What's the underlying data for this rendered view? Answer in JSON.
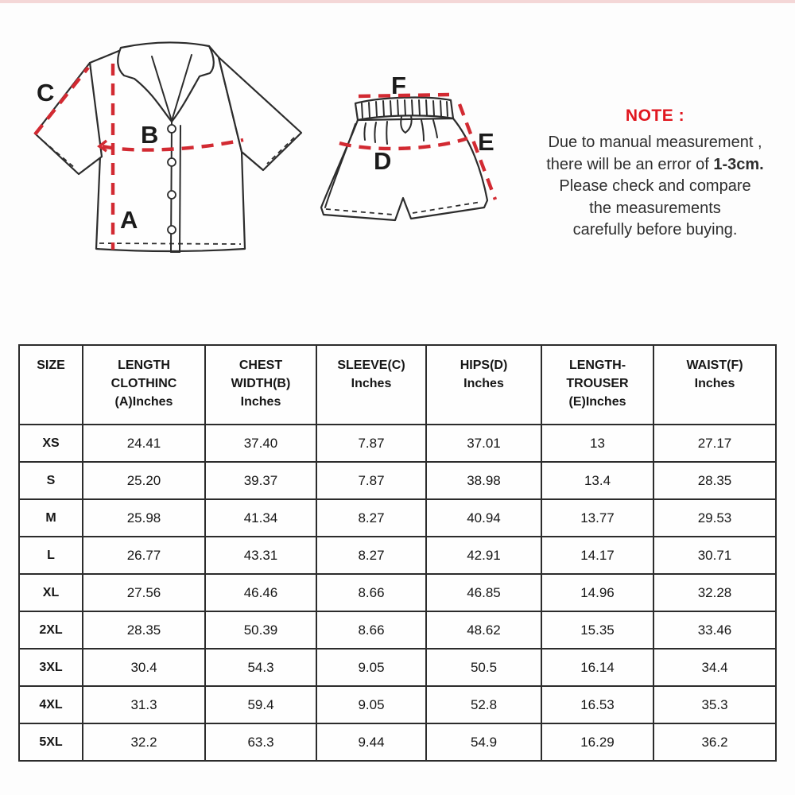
{
  "colors": {
    "accent_red": "#d22a32",
    "note_red": "#e0161e",
    "ink": "#2c2c2c"
  },
  "diagram": {
    "labels": {
      "a": "A",
      "b": "B",
      "c": "C",
      "d": "D",
      "e": "E",
      "f": "F"
    }
  },
  "note": {
    "title": "NOTE :",
    "line1": "Due to manual measurement ,",
    "line2_normal": "there will be an error of ",
    "line2_bold": "1-3cm.",
    "line3": "Please check and compare",
    "line4": "the measurements",
    "line5": "carefully before buying."
  },
  "table": {
    "headers": [
      "SIZE",
      "LENGTH\nCLOTHINC\n(A)Inches",
      "CHEST\nWIDTH(B)\nInches",
      "SLEEVE(C)\nInches",
      "HIPS(D)\nInches",
      "LENGTH-\nTROUSER\n(E)Inches",
      "WAIST(F)\nInches"
    ],
    "rows": [
      {
        "size": "XS",
        "values": [
          "24.41",
          "37.40",
          "7.87",
          "37.01",
          "13",
          "27.17"
        ]
      },
      {
        "size": "S",
        "values": [
          "25.20",
          "39.37",
          "7.87",
          "38.98",
          "13.4",
          "28.35"
        ]
      },
      {
        "size": "M",
        "values": [
          "25.98",
          "41.34",
          "8.27",
          "40.94",
          "13.77",
          "29.53"
        ]
      },
      {
        "size": "L",
        "values": [
          "26.77",
          "43.31",
          "8.27",
          "42.91",
          "14.17",
          "30.71"
        ]
      },
      {
        "size": "XL",
        "values": [
          "27.56",
          "46.46",
          "8.66",
          "46.85",
          "14.96",
          "32.28"
        ]
      },
      {
        "size": "2XL",
        "values": [
          "28.35",
          "50.39",
          "8.66",
          "48.62",
          "15.35",
          "33.46"
        ]
      },
      {
        "size": "3XL",
        "values": [
          "30.4",
          "54.3",
          "9.05",
          "50.5",
          "16.14",
          "34.4"
        ]
      },
      {
        "size": "4XL",
        "values": [
          "31.3",
          "59.4",
          "9.05",
          "52.8",
          "16.53",
          "35.3"
        ]
      },
      {
        "size": "5XL",
        "values": [
          "32.2",
          "63.3",
          "9.44",
          "54.9",
          "16.29",
          "36.2"
        ]
      }
    ]
  }
}
